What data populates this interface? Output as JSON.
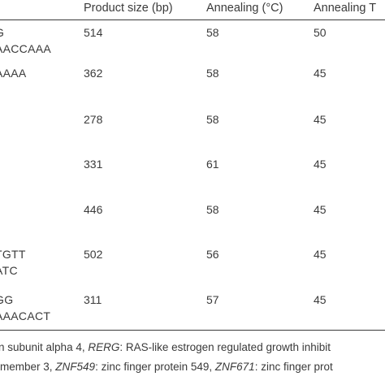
{
  "header": {
    "col_product_size": "Product size (bp)",
    "col_annealing": "Annealing (°C)",
    "col_annealing2": "Annealing T"
  },
  "rows": [
    {
      "primer_line1": "G",
      "primer_line2": "AACCAAA",
      "size": "514",
      "annealing": "58",
      "annealing2": "50"
    },
    {
      "primer_line1": "AAAA",
      "primer_line2": "",
      "size": "362",
      "annealing": "58",
      "annealing2": "45"
    },
    {
      "primer_line1": "",
      "primer_line2": "",
      "size": "278",
      "annealing": "58",
      "annealing2": "45"
    },
    {
      "primer_line1": "",
      "primer_line2": "",
      "size": "331",
      "annealing": "61",
      "annealing2": "45"
    },
    {
      "primer_line1": "",
      "primer_line2": "",
      "size": "446",
      "annealing": "58",
      "annealing2": "45"
    },
    {
      "primer_line1": "TGTT",
      "primer_line2": "ATC",
      "size": "502",
      "annealing": "56",
      "annealing2": "45"
    },
    {
      "primer_line1": "GG",
      "primer_line2": "AAACACT",
      "size": "311",
      "annealing": "57",
      "annealing2": "45"
    }
  ],
  "footnote": {
    "line1_a": "n subunit alpha 4, ",
    "line1_b": "RERG",
    "line1_c": ": RAS-like estrogen regulated growth inhibit",
    "line2_a": "member 3, ",
    "line2_b": "ZNF549",
    "line2_c": ": zinc finger protein 549, ",
    "line2_d": "ZNF671",
    "line2_e": ": zinc finger prot"
  }
}
